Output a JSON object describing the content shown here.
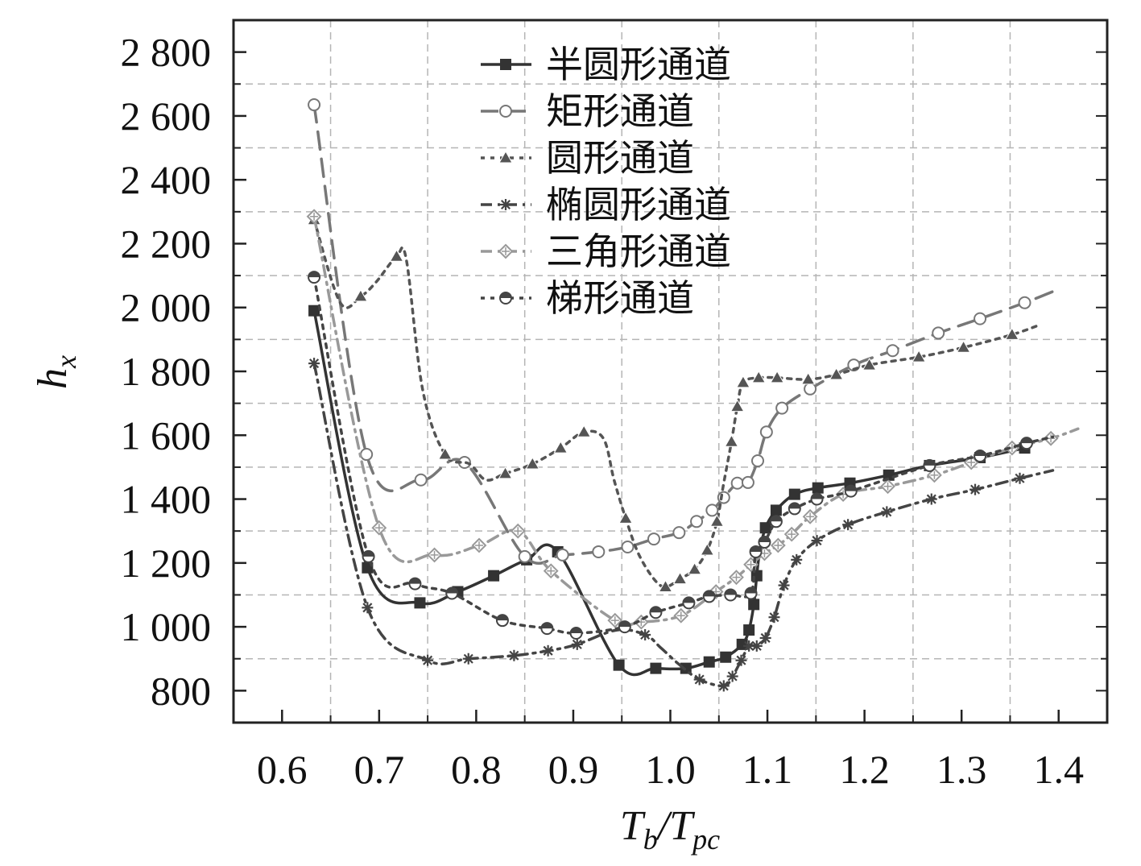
{
  "chart_data": {
    "type": "line",
    "title": "",
    "xlabel": {
      "main": "T",
      "sub1": "b",
      "sep": "/T",
      "sub2": "pc"
    },
    "ylabel": {
      "main": "h",
      "sub": "x"
    },
    "xlim": [
      0.55,
      1.45
    ],
    "ylim": [
      700,
      2900
    ],
    "x_ticks": [
      0.6,
      0.7,
      0.8,
      0.9,
      1.0,
      1.1,
      1.2,
      1.3,
      1.4
    ],
    "x_tick_labels": [
      "0.6",
      "0.7",
      "0.8",
      "0.9",
      "1.0",
      "1.1",
      "1.2",
      "1.3",
      "1.4"
    ],
    "y_ticks": [
      800,
      1000,
      1200,
      1400,
      1600,
      1800,
      2000,
      2200,
      2400,
      2600,
      2800
    ],
    "y_tick_labels": [
      "800",
      "1 000",
      "1 200",
      "1 400",
      "1 600",
      "1 800",
      "2 000",
      "2 200",
      "2 400",
      "2 600",
      "2 800"
    ],
    "grid": true,
    "legend_position": "top-center",
    "series": [
      {
        "name": "半圆形通道",
        "color": "#333333",
        "dash": "none",
        "width": 3.5,
        "marker": "square",
        "x": [
          0.633,
          0.688,
          0.742,
          0.781,
          0.818,
          0.852,
          0.884,
          0.947,
          0.985,
          1.016,
          1.04,
          1.057,
          1.074,
          1.081,
          1.086,
          1.089,
          1.092,
          1.098,
          1.109,
          1.128,
          1.152,
          1.185,
          1.225,
          1.267,
          1.319,
          1.365
        ],
        "y": [
          1990,
          1185,
          1075,
          1110,
          1160,
          1210,
          1235,
          880,
          870,
          870,
          890,
          905,
          945,
          990,
          1070,
          1160,
          1235,
          1310,
          1365,
          1415,
          1435,
          1450,
          1475,
          1505,
          1530,
          1560
        ],
        "markers_idx": [
          0,
          1,
          2,
          3,
          4,
          5,
          6,
          7,
          8,
          9,
          10,
          11,
          12,
          13,
          14,
          15,
          16,
          17,
          18,
          19,
          20,
          21,
          22,
          23,
          24,
          25
        ]
      },
      {
        "name": "矩形通道",
        "color": "#777777",
        "dash": "22,12",
        "width": 3.5,
        "marker": "circle-open",
        "x": [
          0.633,
          0.687,
          0.743,
          0.788,
          0.85,
          0.889,
          0.926,
          0.956,
          0.983,
          1.009,
          1.027,
          1.043,
          1.055,
          1.069,
          1.08,
          1.09,
          1.099,
          1.115,
          1.144,
          1.189,
          1.229,
          1.276,
          1.319,
          1.365,
          1.394
        ],
        "y": [
          2635,
          1540,
          1460,
          1515,
          1220,
          1225,
          1235,
          1250,
          1275,
          1295,
          1330,
          1365,
          1405,
          1450,
          1452,
          1520,
          1610,
          1685,
          1745,
          1820,
          1865,
          1920,
          1965,
          2015,
          2050
        ],
        "markers_idx": [
          0,
          1,
          2,
          3,
          4,
          5,
          6,
          7,
          8,
          9,
          10,
          11,
          12,
          13,
          14,
          15,
          16,
          17,
          18,
          19,
          20,
          21,
          22,
          23
        ]
      },
      {
        "name": "圆形通道",
        "color": "#555555",
        "dash": "5,7",
        "width": 3.5,
        "marker": "triangle",
        "x": [
          0.633,
          0.66,
          0.681,
          0.697,
          0.718,
          0.728,
          0.745,
          0.768,
          0.793,
          0.81,
          0.83,
          0.858,
          0.887,
          0.911,
          0.931,
          0.942,
          0.954,
          0.967,
          0.983,
          0.995,
          1.01,
          1.025,
          1.038,
          1.048,
          1.055,
          1.063,
          1.069,
          1.075,
          1.091,
          1.11,
          1.142,
          1.171,
          1.205,
          1.256,
          1.302,
          1.352,
          1.38
        ],
        "y": [
          2275,
          2015,
          2035,
          2080,
          2160,
          2150,
          1740,
          1540,
          1510,
          1460,
          1480,
          1510,
          1560,
          1610,
          1590,
          1460,
          1340,
          1230,
          1150,
          1125,
          1150,
          1180,
          1240,
          1330,
          1450,
          1580,
          1690,
          1765,
          1780,
          1780,
          1775,
          1790,
          1820,
          1845,
          1875,
          1915,
          1945
        ],
        "markers_idx": [
          0,
          2,
          4,
          7,
          10,
          11,
          12,
          13,
          16,
          19,
          20,
          21,
          22,
          23,
          25,
          26,
          27,
          28,
          29,
          30,
          31,
          32,
          33,
          34,
          35
        ]
      },
      {
        "name": "椭圆形通道",
        "color": "#444444",
        "dash": "14,7,3,7",
        "width": 3.5,
        "marker": "star",
        "x": [
          0.633,
          0.688,
          0.75,
          0.792,
          0.839,
          0.874,
          0.904,
          0.945,
          0.974,
          0.99,
          1.008,
          1.03,
          1.055,
          1.064,
          1.073,
          1.081,
          1.089,
          1.098,
          1.107,
          1.117,
          1.13,
          1.151,
          1.183,
          1.223,
          1.269,
          1.314,
          1.36,
          1.394
        ],
        "y": [
          1825,
          1060,
          895,
          900,
          910,
          925,
          945,
          990,
          975,
          935,
          885,
          835,
          815,
          845,
          895,
          940,
          940,
          965,
          1030,
          1130,
          1210,
          1270,
          1320,
          1360,
          1400,
          1430,
          1465,
          1490
        ],
        "markers_idx": [
          0,
          1,
          2,
          3,
          4,
          5,
          6,
          8,
          11,
          12,
          13,
          14,
          15,
          16,
          17,
          18,
          19,
          20,
          21,
          22,
          23,
          24,
          25,
          26
        ]
      },
      {
        "name": "三角形通道",
        "color": "#999999",
        "dash": "14,7,3,7",
        "width": 3.5,
        "marker": "diamond",
        "x": [
          0.633,
          0.7,
          0.757,
          0.803,
          0.843,
          0.877,
          0.943,
          0.97,
          1.011,
          1.047,
          1.068,
          1.083,
          1.097,
          1.111,
          1.125,
          1.144,
          1.178,
          1.224,
          1.272,
          1.31,
          1.352,
          1.392,
          1.42
        ],
        "y": [
          2285,
          1310,
          1225,
          1255,
          1300,
          1175,
          1020,
          1015,
          1035,
          1110,
          1155,
          1195,
          1230,
          1255,
          1290,
          1345,
          1415,
          1440,
          1475,
          1515,
          1560,
          1590,
          1620
        ],
        "markers_idx": [
          0,
          1,
          2,
          3,
          4,
          5,
          6,
          7,
          8,
          9,
          10,
          11,
          12,
          13,
          14,
          15,
          16,
          17,
          18,
          19,
          20,
          21
        ]
      },
      {
        "name": "梯形通道",
        "color": "#444444",
        "dash": "5,7",
        "width": 3.5,
        "marker": "halfcircle",
        "x": [
          0.633,
          0.689,
          0.737,
          0.775,
          0.827,
          0.873,
          0.903,
          0.953,
          0.985,
          1.019,
          1.04,
          1.062,
          1.083,
          1.088,
          1.097,
          1.109,
          1.128,
          1.151,
          1.186,
          1.267,
          1.319,
          1.367,
          1.394
        ],
        "y": [
          2095,
          1220,
          1135,
          1105,
          1020,
          995,
          980,
          1000,
          1045,
          1075,
          1095,
          1100,
          1105,
          1235,
          1265,
          1330,
          1370,
          1400,
          1425,
          1505,
          1535,
          1575,
          1595
        ],
        "markers_idx": [
          0,
          1,
          2,
          3,
          4,
          5,
          6,
          7,
          8,
          9,
          10,
          11,
          12,
          13,
          14,
          15,
          16,
          17,
          18,
          19,
          20,
          21
        ]
      }
    ]
  }
}
